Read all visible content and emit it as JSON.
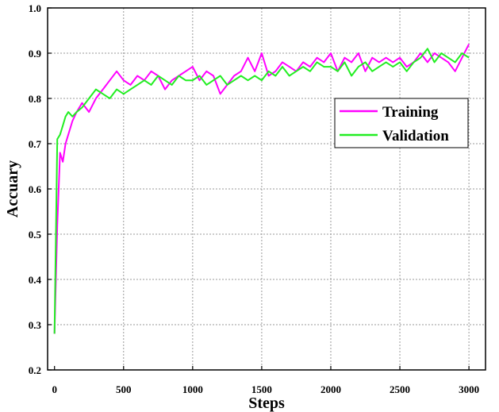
{
  "chart_data": {
    "type": "line",
    "title": "",
    "xlabel": "Steps",
    "ylabel": "Accuary",
    "xlim": [
      -50,
      3120
    ],
    "ylim": [
      0.2,
      1.0
    ],
    "xticks": [
      "0",
      "500",
      "1000",
      "1500",
      "2000",
      "2500",
      "3000"
    ],
    "yticks": [
      "0.2",
      "0.3",
      "0.4",
      "0.5",
      "0.6",
      "0.7",
      "0.8",
      "0.9",
      "1.0"
    ],
    "grid": true,
    "legend_position": "middle-right",
    "series": [
      {
        "name": "Training",
        "color": "#ff00ff",
        "x": [
          0,
          20,
          40,
          60,
          80,
          100,
          130,
          160,
          200,
          250,
          300,
          350,
          400,
          450,
          500,
          550,
          600,
          650,
          700,
          750,
          800,
          850,
          900,
          950,
          1000,
          1050,
          1100,
          1150,
          1200,
          1250,
          1300,
          1350,
          1400,
          1450,
          1500,
          1550,
          1600,
          1650,
          1700,
          1750,
          1800,
          1850,
          1900,
          1950,
          2000,
          2050,
          2100,
          2150,
          2200,
          2250,
          2300,
          2350,
          2400,
          2450,
          2500,
          2550,
          2600,
          2650,
          2700,
          2750,
          2800,
          2850,
          2900,
          2950,
          3000
        ],
        "values": [
          0.28,
          0.52,
          0.68,
          0.66,
          0.7,
          0.72,
          0.75,
          0.77,
          0.79,
          0.77,
          0.8,
          0.82,
          0.84,
          0.86,
          0.84,
          0.83,
          0.85,
          0.84,
          0.86,
          0.85,
          0.82,
          0.84,
          0.85,
          0.86,
          0.87,
          0.84,
          0.86,
          0.85,
          0.81,
          0.83,
          0.85,
          0.86,
          0.89,
          0.86,
          0.9,
          0.85,
          0.86,
          0.88,
          0.87,
          0.86,
          0.88,
          0.87,
          0.89,
          0.88,
          0.9,
          0.86,
          0.89,
          0.88,
          0.9,
          0.86,
          0.89,
          0.88,
          0.89,
          0.88,
          0.89,
          0.87,
          0.88,
          0.9,
          0.88,
          0.9,
          0.89,
          0.88,
          0.86,
          0.89,
          0.92
        ]
      },
      {
        "name": "Validation",
        "color": "#22ee22",
        "x": [
          0,
          20,
          40,
          60,
          80,
          100,
          130,
          160,
          200,
          250,
          300,
          350,
          400,
          450,
          500,
          550,
          600,
          650,
          700,
          750,
          800,
          850,
          900,
          950,
          1000,
          1050,
          1100,
          1150,
          1200,
          1250,
          1300,
          1350,
          1400,
          1450,
          1500,
          1550,
          1600,
          1650,
          1700,
          1750,
          1800,
          1850,
          1900,
          1950,
          2000,
          2050,
          2100,
          2150,
          2200,
          2250,
          2300,
          2350,
          2400,
          2450,
          2500,
          2550,
          2600,
          2650,
          2700,
          2750,
          2800,
          2850,
          2900,
          2950,
          3000
        ],
        "values": [
          0.28,
          0.71,
          0.72,
          0.74,
          0.76,
          0.77,
          0.76,
          0.77,
          0.78,
          0.8,
          0.82,
          0.81,
          0.8,
          0.82,
          0.81,
          0.82,
          0.83,
          0.84,
          0.83,
          0.85,
          0.84,
          0.83,
          0.85,
          0.84,
          0.84,
          0.85,
          0.83,
          0.84,
          0.85,
          0.83,
          0.84,
          0.85,
          0.84,
          0.85,
          0.84,
          0.86,
          0.85,
          0.87,
          0.85,
          0.86,
          0.87,
          0.86,
          0.88,
          0.87,
          0.87,
          0.86,
          0.88,
          0.85,
          0.87,
          0.88,
          0.86,
          0.87,
          0.88,
          0.87,
          0.88,
          0.86,
          0.88,
          0.89,
          0.91,
          0.88,
          0.9,
          0.89,
          0.88,
          0.9,
          0.89
        ]
      }
    ]
  }
}
